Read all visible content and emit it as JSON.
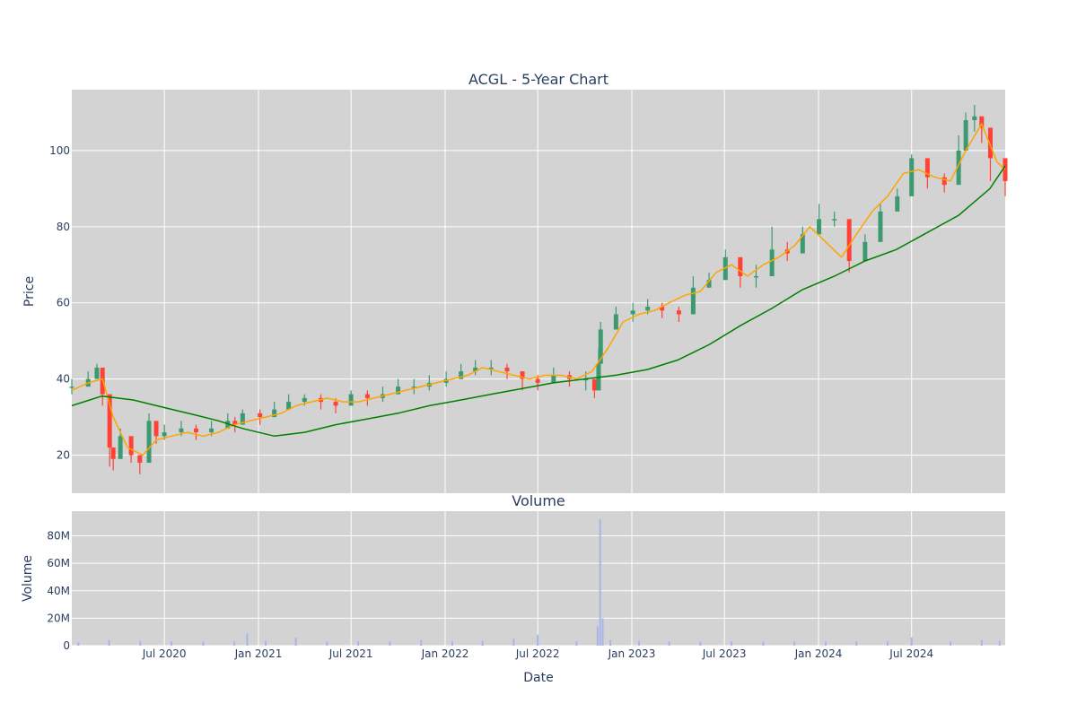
{
  "chart_data": [
    {
      "type": "candlestick",
      "title": "ACGL - 5-Year Chart",
      "ylabel": "Price",
      "ylim": [
        10,
        116
      ],
      "yticks": [
        20,
        40,
        60,
        80,
        100
      ],
      "xlim": [
        "2020-01-02",
        "2024-12-31"
      ],
      "grid": true,
      "colors": {
        "up": "#3d9970",
        "down": "#ff4136",
        "ma_short": "#ffa500",
        "ma_long": "#008000",
        "plot_bg": "#d3d3d3"
      },
      "series": [
        {
          "kind": "ohlc",
          "x": [
            "2020-01-02",
            "2020-02-03",
            "2020-02-20",
            "2020-03-02",
            "2020-03-16",
            "2020-03-23",
            "2020-04-06",
            "2020-04-27",
            "2020-05-14",
            "2020-06-01",
            "2020-06-15",
            "2020-07-01",
            "2020-08-03",
            "2020-09-01",
            "2020-10-01",
            "2020-11-02",
            "2020-11-16",
            "2020-12-01",
            "2021-01-04",
            "2021-02-01",
            "2021-03-01",
            "2021-04-01",
            "2021-05-03",
            "2021-06-01",
            "2021-07-01",
            "2021-08-02",
            "2021-09-01",
            "2021-10-01",
            "2021-11-01",
            "2021-12-01",
            "2022-01-03",
            "2022-02-01",
            "2022-03-01",
            "2022-04-01",
            "2022-05-02",
            "2022-06-01",
            "2022-07-01",
            "2022-08-01",
            "2022-09-01",
            "2022-10-03",
            "2022-10-20",
            "2022-10-28",
            "2022-11-01",
            "2022-12-01",
            "2023-01-03",
            "2023-02-01",
            "2023-03-01",
            "2023-04-03",
            "2023-05-01",
            "2023-06-01",
            "2023-07-03",
            "2023-08-01",
            "2023-09-01",
            "2023-10-02",
            "2023-11-01",
            "2023-12-01",
            "2024-01-02",
            "2024-02-01",
            "2024-03-01",
            "2024-04-01",
            "2024-05-01",
            "2024-06-03",
            "2024-07-01",
            "2024-08-01",
            "2024-09-03",
            "2024-10-01",
            "2024-10-15",
            "2024-11-01",
            "2024-11-15",
            "2024-12-02",
            "2024-12-31"
          ],
          "close": [
            38,
            40,
            43,
            36,
            22,
            19,
            25,
            20,
            18,
            29,
            25,
            26,
            27,
            26,
            27,
            29,
            28,
            31,
            30,
            32,
            34,
            35,
            34,
            33,
            36,
            35,
            36,
            38,
            38,
            39,
            40,
            42,
            43,
            43,
            42,
            40,
            39,
            41,
            40,
            40,
            37,
            44,
            53,
            57,
            58,
            59,
            58,
            57,
            64,
            66,
            72,
            67,
            67,
            74,
            73,
            78,
            82,
            82,
            71,
            76,
            84,
            88,
            98,
            93,
            91,
            100,
            108,
            109,
            106,
            98,
            92
          ],
          "high": [
            40,
            42,
            44,
            38,
            25,
            22,
            27,
            23,
            20,
            31,
            27,
            28,
            29,
            28,
            29,
            31,
            30,
            32,
            32,
            34,
            36,
            36,
            36,
            35,
            37,
            37,
            38,
            40,
            40,
            41,
            42,
            44,
            45,
            45,
            44,
            42,
            41,
            43,
            42,
            42,
            39,
            48,
            55,
            59,
            60,
            61,
            60,
            59,
            67,
            68,
            74,
            70,
            70,
            80,
            76,
            80,
            86,
            84,
            74,
            78,
            86,
            90,
            99,
            96,
            94,
            104,
            110,
            112,
            109,
            101,
            94
          ],
          "low": [
            36,
            38,
            41,
            33,
            17,
            16,
            22,
            18,
            15,
            27,
            23,
            24,
            25,
            24,
            25,
            27,
            26,
            29,
            28,
            30,
            32,
            33,
            32,
            31,
            34,
            33,
            34,
            36,
            36,
            37,
            38,
            40,
            41,
            41,
            40,
            37,
            37,
            39,
            38,
            37,
            35,
            40,
            50,
            54,
            55,
            57,
            56,
            55,
            61,
            64,
            70,
            64,
            64,
            72,
            71,
            76,
            80,
            80,
            68,
            74,
            82,
            86,
            95,
            90,
            89,
            96,
            104,
            105,
            102,
            92,
            88
          ]
        },
        {
          "kind": "line",
          "role": "ma_short",
          "x": [
            "2020-01-02",
            "2020-02-03",
            "2020-03-02",
            "2020-03-23",
            "2020-04-20",
            "2020-05-20",
            "2020-06-15",
            "2020-07-15",
            "2020-08-15",
            "2020-09-15",
            "2020-10-15",
            "2020-11-15",
            "2020-12-15",
            "2021-01-15",
            "2021-02-15",
            "2021-03-15",
            "2021-04-15",
            "2021-05-15",
            "2021-06-15",
            "2021-07-15",
            "2021-08-15",
            "2021-09-15",
            "2021-10-15",
            "2021-11-15",
            "2021-12-15",
            "2022-01-15",
            "2022-02-15",
            "2022-03-15",
            "2022-04-15",
            "2022-05-15",
            "2022-06-15",
            "2022-07-15",
            "2022-08-15",
            "2022-09-15",
            "2022-10-15",
            "2022-11-15",
            "2022-12-15",
            "2023-01-15",
            "2023-02-15",
            "2023-03-15",
            "2023-04-15",
            "2023-05-15",
            "2023-06-15",
            "2023-07-15",
            "2023-08-15",
            "2023-09-15",
            "2023-10-15",
            "2023-11-15",
            "2023-12-15",
            "2024-01-15",
            "2024-02-15",
            "2024-03-15",
            "2024-04-15",
            "2024-05-15",
            "2024-06-15",
            "2024-07-15",
            "2024-08-15",
            "2024-09-15",
            "2024-10-15",
            "2024-11-15",
            "2024-12-15",
            "2024-12-31"
          ],
          "y": [
            37,
            39,
            40,
            30,
            22,
            20,
            24,
            25,
            26,
            25,
            26,
            28,
            29,
            30,
            31,
            33,
            34,
            35,
            34,
            34,
            35,
            36,
            37,
            38,
            39,
            40,
            41,
            43,
            42,
            41,
            40,
            41,
            41,
            40,
            42,
            48,
            55,
            57,
            58,
            60,
            62,
            63,
            68,
            70,
            67,
            70,
            72,
            75,
            80,
            76,
            72,
            78,
            84,
            88,
            94,
            95,
            93,
            92,
            100,
            107,
            97,
            95
          ]
        },
        {
          "kind": "line",
          "role": "ma_long",
          "x": [
            "2020-01-02",
            "2020-03-01",
            "2020-05-01",
            "2020-07-01",
            "2020-09-01",
            "2020-10-15",
            "2020-12-01",
            "2021-02-01",
            "2021-04-01",
            "2021-06-01",
            "2021-08-01",
            "2021-10-01",
            "2021-12-01",
            "2022-02-01",
            "2022-04-01",
            "2022-06-01",
            "2022-08-01",
            "2022-10-01",
            "2022-12-01",
            "2023-02-01",
            "2023-04-01",
            "2023-06-01",
            "2023-08-01",
            "2023-10-01",
            "2023-12-01",
            "2024-02-01",
            "2024-04-01",
            "2024-06-01",
            "2024-08-01",
            "2024-10-01",
            "2024-12-01",
            "2024-12-31"
          ],
          "y": [
            33,
            35.5,
            34.5,
            32.5,
            30.5,
            29,
            27,
            25,
            26,
            28,
            29.5,
            31,
            33,
            34.5,
            36,
            37.5,
            39,
            40,
            41,
            42.5,
            45,
            49,
            54,
            58.5,
            63.5,
            67,
            71,
            74,
            78.5,
            83,
            90,
            96
          ]
        }
      ]
    },
    {
      "type": "bar",
      "title": "Volume",
      "xlabel": "Date",
      "ylabel": "Volume",
      "ylim": [
        0,
        98000000
      ],
      "yticks": [
        0,
        20000000,
        40000000,
        60000000,
        80000000
      ],
      "ytick_labels": [
        "0",
        "20M",
        "40M",
        "60M",
        "80M"
      ],
      "xtick_labels": [
        "Jul 2020",
        "Jan 2021",
        "Jul 2021",
        "Jan 2022",
        "Jul 2022",
        "Jan 2023",
        "Jul 2023",
        "Jan 2024",
        "Jul 2024"
      ],
      "xtick_dates": [
        "2020-07-01",
        "2021-01-01",
        "2021-07-01",
        "2022-01-01",
        "2022-07-01",
        "2023-01-01",
        "2023-07-01",
        "2024-01-01",
        "2024-07-01"
      ],
      "grid": true,
      "colors": {
        "bar": "#a9b4e8",
        "plot_bg": "#d3d3d3"
      },
      "x": [
        "2020-01-15",
        "2020-03-15",
        "2020-05-15",
        "2020-07-15",
        "2020-09-15",
        "2020-11-15",
        "2020-12-10",
        "2021-01-15",
        "2021-03-15",
        "2021-05-15",
        "2021-07-15",
        "2021-09-15",
        "2021-11-15",
        "2022-01-15",
        "2022-03-15",
        "2022-05-15",
        "2022-07-01",
        "2022-09-15",
        "2022-10-26",
        "2022-10-31",
        "2022-11-05",
        "2022-11-20",
        "2023-01-15",
        "2023-03-15",
        "2023-05-15",
        "2023-07-15",
        "2023-09-15",
        "2023-11-15",
        "2024-01-15",
        "2024-03-15",
        "2024-05-15",
        "2024-07-01",
        "2024-09-15",
        "2024-11-15",
        "2024-12-20"
      ],
      "values": [
        2500000,
        4000000,
        3500000,
        3000000,
        2800000,
        3200000,
        9000000,
        3500000,
        6000000,
        3000000,
        3200000,
        3000000,
        4000000,
        3000000,
        3500000,
        5000000,
        8000000,
        3200000,
        14000000,
        92000000,
        20000000,
        4000000,
        3500000,
        3000000,
        2800000,
        3000000,
        2800000,
        3000000,
        2800000,
        3000000,
        3200000,
        6000000,
        3000000,
        4000000,
        3500000
      ]
    }
  ]
}
